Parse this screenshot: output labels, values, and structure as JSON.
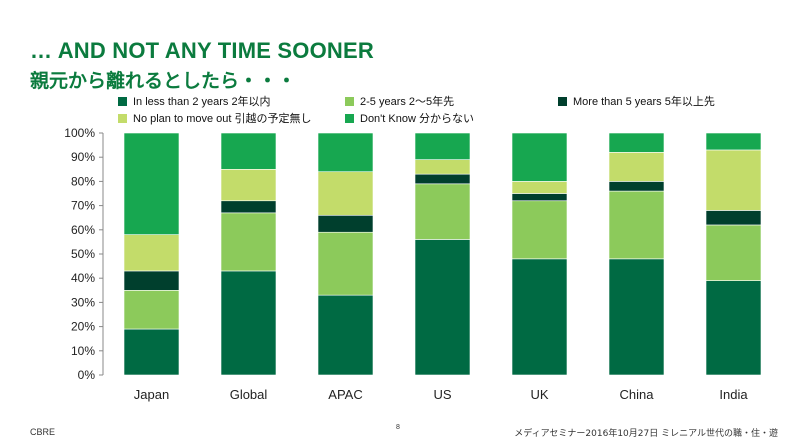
{
  "header": {
    "title": "… AND NOT ANY TIME SOONER",
    "subtitle": "親元から離れるとしたら・・・"
  },
  "footer": {
    "left": "CBRE",
    "page": "8",
    "right": "メディアセミナー2016年10月27日  ミレニアル世代の職・住・遊"
  },
  "chart_data": {
    "type": "bar",
    "stacked": true,
    "categories": [
      "Japan",
      "Global",
      "APAC",
      "US",
      "UK",
      "China",
      "India"
    ],
    "y_tick_labels": [
      "0%",
      "10%",
      "20%",
      "30%",
      "40%",
      "50%",
      "60%",
      "70%",
      "80%",
      "90%",
      "100%"
    ],
    "ylim": [
      0,
      100
    ],
    "grid": false,
    "legend_position": "top",
    "series": [
      {
        "name": "In less than 2 years 2年以内",
        "color": "#006a43",
        "values": [
          19,
          43,
          33,
          56,
          48,
          48,
          39
        ]
      },
      {
        "name": "2-5 years 2～5年先",
        "color": "#8cca5b",
        "values": [
          16,
          24,
          26,
          23,
          24,
          28,
          23
        ]
      },
      {
        "name": "More than 5 years 5年以上先",
        "color": "#003f2d",
        "values": [
          8,
          5,
          7,
          4,
          3,
          4,
          6
        ]
      },
      {
        "name": "No plan to move out 引越の予定無し",
        "color": "#c3dc6a",
        "values": [
          15,
          13,
          18,
          6,
          5,
          12,
          25
        ]
      },
      {
        "name": "Don't Know 分からない",
        "color": "#17a750",
        "values": [
          42,
          15,
          16,
          11,
          20,
          8,
          7
        ]
      }
    ]
  }
}
